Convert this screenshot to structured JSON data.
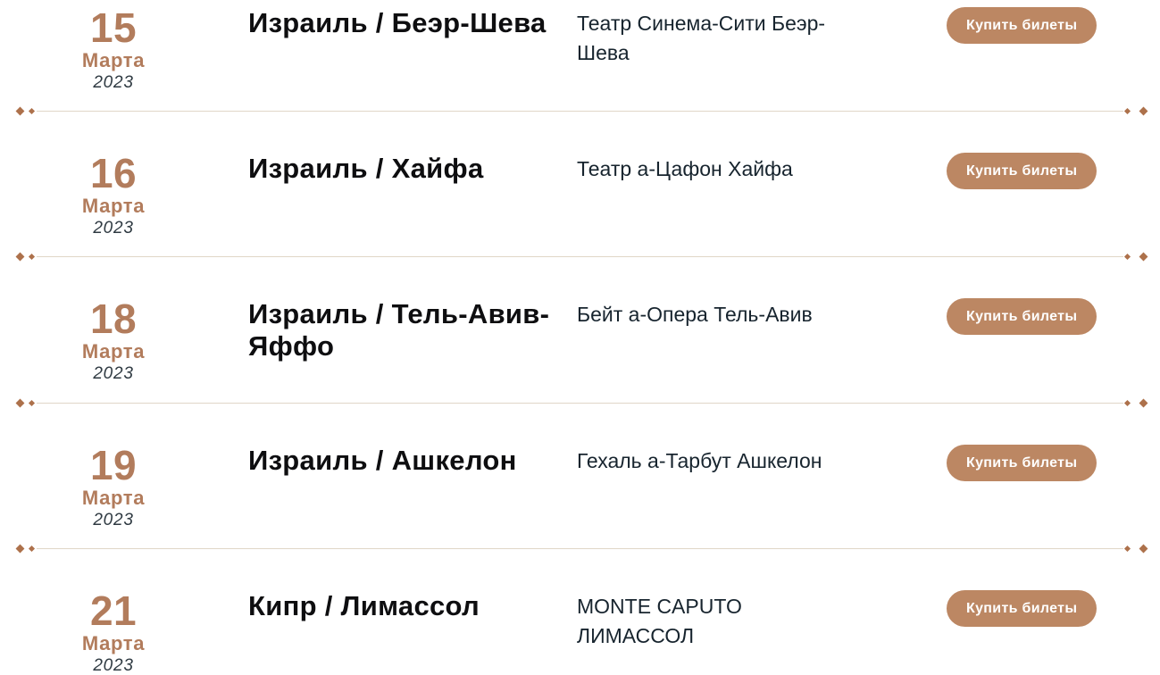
{
  "buy_button_label": "Купить билеты",
  "colors": {
    "accent_copper": "#b27c5c",
    "button_background": "#bc8763",
    "button_text": "#ffffff",
    "separator_line": "#e0d6c7",
    "separator_diamond": "#ad714b",
    "location_text": "#0e0e10",
    "venue_text": "#17242e",
    "year_text": "#2f3a42"
  },
  "rows": [
    {
      "day": "15",
      "month": "Марта",
      "year": "2023",
      "location": "Израиль / Беэр-Шева",
      "venue": "Театр Синема-Сити Беэр-\nШева"
    },
    {
      "day": "16",
      "month": "Марта",
      "year": "2023",
      "location": "Израиль / Хайфа",
      "venue": "Театр а-Цафон Хайфа"
    },
    {
      "day": "18",
      "month": "Марта",
      "year": "2023",
      "location": "Израиль / Тель-Авив-\nЯффо",
      "venue": "Бейт а-Опера Тель-Авив"
    },
    {
      "day": "19",
      "month": "Марта",
      "year": "2023",
      "location": "Израиль / Ашкелон",
      "venue": "Гехаль а-Тарбут Ашкелон"
    },
    {
      "day": "21",
      "month": "Марта",
      "year": "2023",
      "location": "Кипр / Лимассол",
      "venue": "MONTE CAPUTO\nЛИМАССОЛ"
    }
  ]
}
